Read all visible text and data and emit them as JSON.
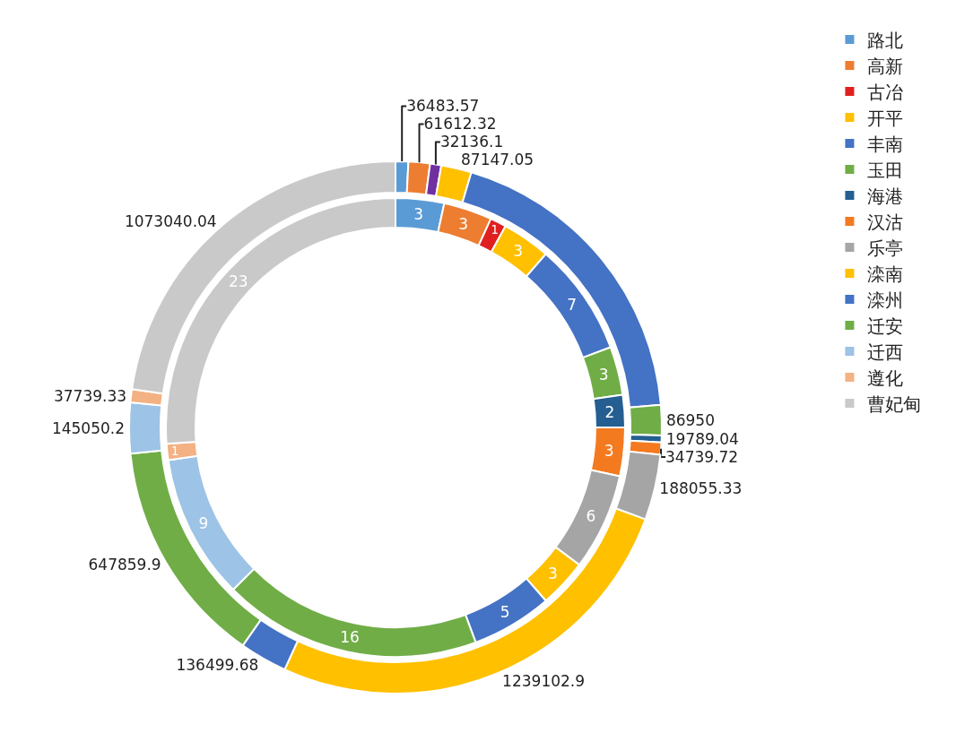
{
  "chart_data": {
    "type": "donut",
    "categories": [
      "路北",
      "高新",
      "古冶",
      "开平",
      "丰南",
      "玉田",
      "海港",
      "汉沽",
      "乐亭",
      "滦南",
      "滦州",
      "迁安",
      "迁西",
      "遵化",
      "曹妃甸"
    ],
    "series": [
      {
        "values": [
          3,
          3,
          1,
          3,
          7,
          3,
          2,
          3,
          6,
          3,
          5,
          16,
          9,
          1,
          23
        ],
        "colors": [
          "#5b9bd5",
          "#ed7d31",
          "#e02020",
          "#ffc000",
          "#4472c4",
          "#70ad47",
          "#255e91",
          "#f47a20",
          "#a5a5a5",
          "#ffc000",
          "#4472c4",
          "#70ad47",
          "#9dc3e6",
          "#f4b183",
          "#c9c9c9"
        ]
      },
      {
        "values": [
          36483.57,
          61612.32,
          32136.1,
          87147.05,
          900000,
          86950,
          19789.04,
          34739.72,
          188055.33,
          1239102.9,
          136499.68,
          647859.9,
          145050.2,
          37739.33,
          1073040.04
        ],
        "colors": [
          "#5b9bd5",
          "#ed7d31",
          "#7030a0",
          "#ffc000",
          "#4472c4",
          "#70ad47",
          "#255e91",
          "#f47a20",
          "#a5a5a5",
          "#ffc000",
          "#4472c4",
          "#70ad47",
          "#9dc3e6",
          "#f4b183",
          "#c9c9c9"
        ],
        "value_labels": [
          "36483.57",
          "61612.32",
          "32136.1",
          "87147.05",
          null,
          "86950",
          "19789.04",
          "34739.72",
          "188055.33",
          "1239102.9",
          "136499.68",
          "647859.9",
          "145050.2",
          "37739.33",
          "1073040.04"
        ]
      }
    ],
    "data_labels": true,
    "legend": "right"
  }
}
